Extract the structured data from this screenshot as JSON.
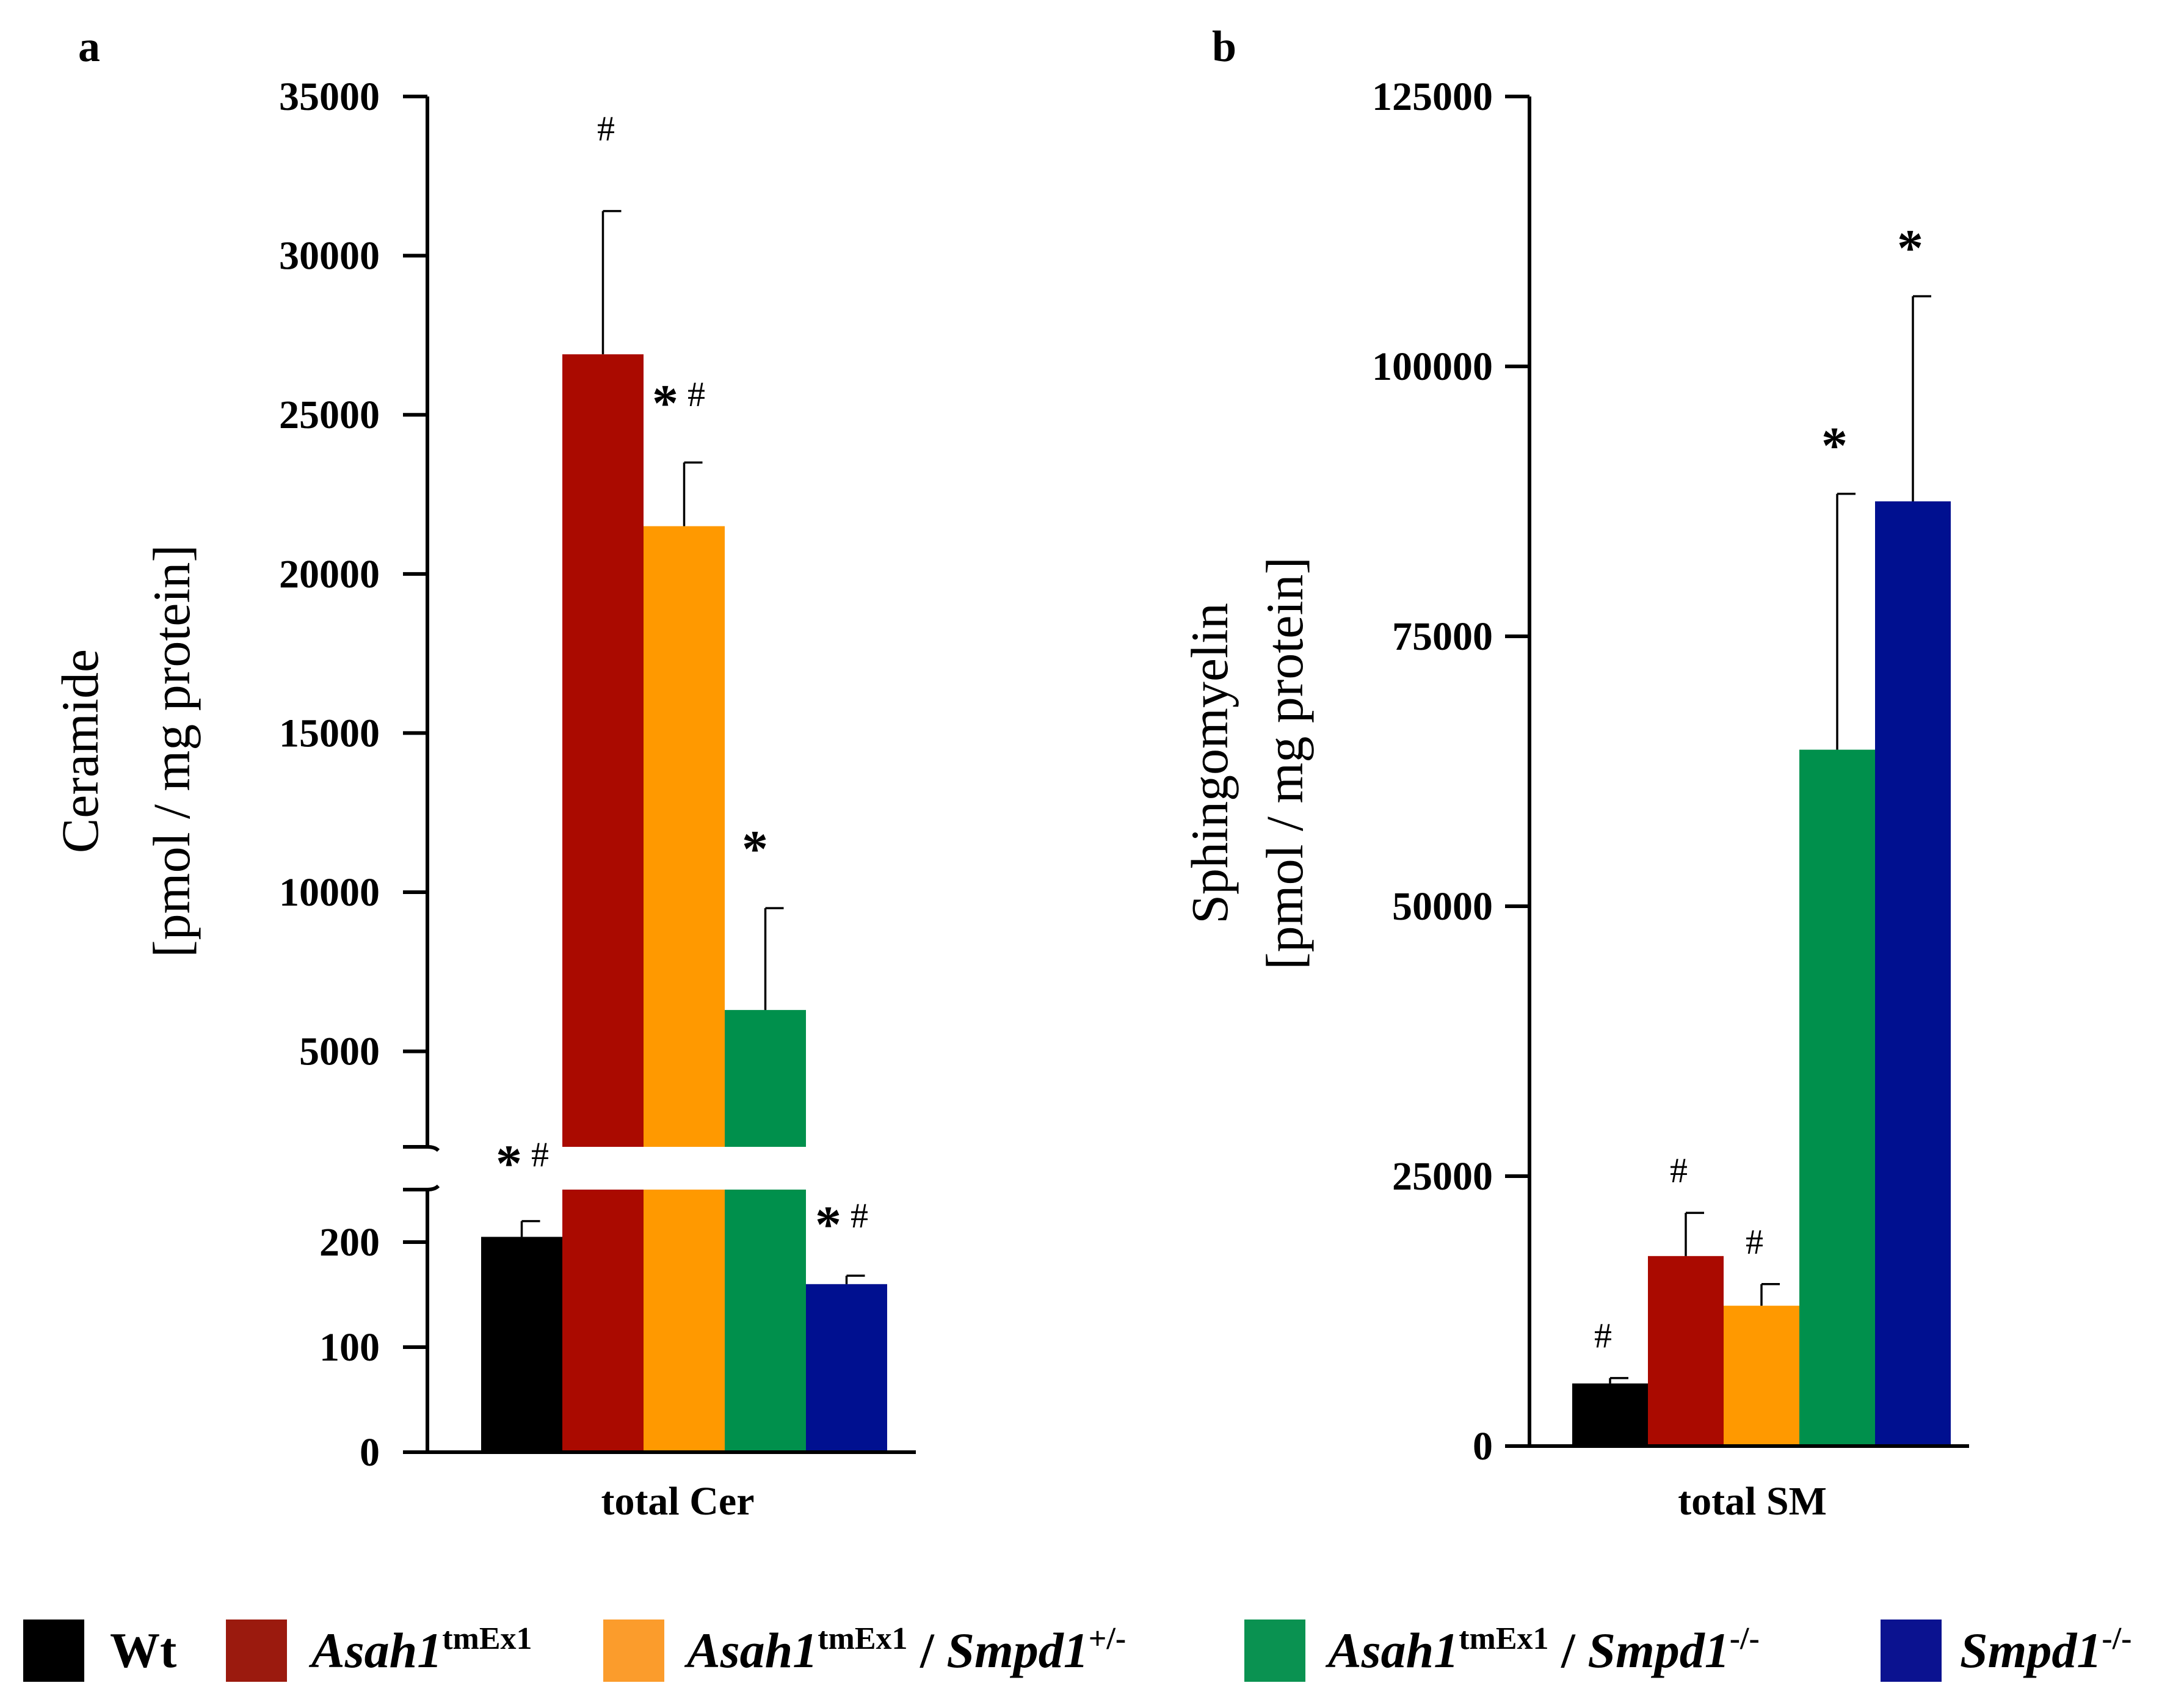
{
  "panels": {
    "a": {
      "label": "a"
    },
    "b": {
      "label": "b"
    }
  },
  "legend": {
    "items": [
      {
        "key": "wt",
        "color": "#000000",
        "main": "Wt",
        "sup": "",
        "sep": "",
        "main2": "",
        "sup2": ""
      },
      {
        "key": "asah1",
        "color": "#9b1a0e",
        "main": "Asah1",
        "sup": "tmEx1",
        "sep": "",
        "main2": "",
        "sup2": ""
      },
      {
        "key": "asah1_het",
        "color": "#fb9c2c",
        "main": "Asah1",
        "sup": "tmEx1",
        "sep": " / ",
        "main2": "Smpd1",
        "sup2": "+/-"
      },
      {
        "key": "asah1_ko",
        "color": "#0a9251",
        "main": "Asah1",
        "sup": "tmEx1",
        "sep": " / ",
        "main2": "Smpd1",
        "sup2": "-/-"
      },
      {
        "key": "smpd1",
        "color": "#0b1290",
        "main": "Smpd1",
        "sup": "-/-",
        "sep": "",
        "main2": "",
        "sup2": ""
      }
    ]
  },
  "chart_data": [
    {
      "type": "bar",
      "panel": "a",
      "title": "",
      "xlabel": "total Cer",
      "ylabel_line1": "Ceramide",
      "ylabel_line2": "[pmol / mg protein]",
      "categories": [
        "Wt",
        "Asah1tmEx1",
        "Asah1tmEx1 / Smpd1+/-",
        "Asah1tmEx1 / Smpd1-/-",
        "Smpd1-/-"
      ],
      "colors": [
        "#000000",
        "#aa0a00",
        "#ff9900",
        "#00904c",
        "#001090"
      ],
      "values": [
        205,
        26900,
        21500,
        6300,
        160
      ],
      "errors": [
        15,
        4500,
        2000,
        3200,
        8
      ],
      "axis_break": true,
      "lower_range": [
        0,
        250
      ],
      "lower_ticks": [
        "0",
        "100",
        "200"
      ],
      "lower_tick_values": [
        0,
        100,
        200
      ],
      "upper_range": [
        2000,
        35000
      ],
      "upper_ticks": [
        "5000",
        "10000",
        "15000",
        "20000",
        "25000",
        "30000",
        "35000"
      ],
      "upper_tick_values": [
        5000,
        10000,
        15000,
        20000,
        25000,
        30000,
        35000
      ],
      "annotations": [
        {
          "bar": 0,
          "star": "*",
          "hash": "#"
        },
        {
          "bar": 1,
          "star": "",
          "hash": "#"
        },
        {
          "bar": 2,
          "star": "*",
          "hash": "#"
        },
        {
          "bar": 3,
          "star": "*",
          "hash": ""
        },
        {
          "bar": 4,
          "star": "*",
          "hash": "#"
        }
      ]
    },
    {
      "type": "bar",
      "panel": "b",
      "title": "",
      "xlabel": "total SM",
      "ylabel_line1": "Sphingomyelin",
      "ylabel_line2": "[pmol / mg protein]",
      "categories": [
        "Wt",
        "Asah1tmEx1",
        "Asah1tmEx1 / Smpd1+/-",
        "Asah1tmEx1 / Smpd1-/-",
        "Smpd1-/-"
      ],
      "colors": [
        "#000000",
        "#aa0a00",
        "#ff9900",
        "#00904c",
        "#001090"
      ],
      "values": [
        5800,
        17600,
        13000,
        64500,
        87500
      ],
      "errors": [
        500,
        4000,
        2000,
        23700,
        19000
      ],
      "ylim": [
        0,
        125000
      ],
      "ticks": [
        "0",
        "25000",
        "50000",
        "75000",
        "100000",
        "125000"
      ],
      "tick_values": [
        0,
        25000,
        50000,
        75000,
        100000,
        125000
      ],
      "annotations": [
        {
          "bar": 0,
          "star": "",
          "hash": "#"
        },
        {
          "bar": 1,
          "star": "",
          "hash": "#"
        },
        {
          "bar": 2,
          "star": "",
          "hash": "#"
        },
        {
          "bar": 3,
          "star": "*",
          "hash": ""
        },
        {
          "bar": 4,
          "star": "*",
          "hash": ""
        }
      ]
    }
  ]
}
